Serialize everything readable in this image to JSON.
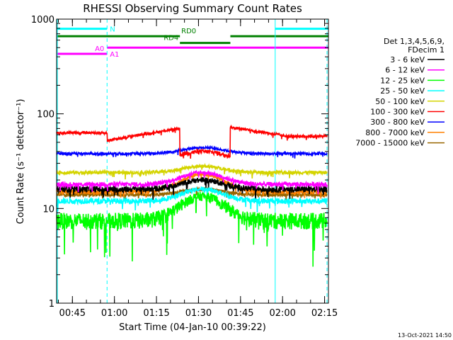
{
  "chart_data": {
    "type": "line",
    "title": "RHESSI Observing Summary Count Rates",
    "xlabel": "Start Time (04-Jan-10 00:39:22)",
    "ylabel": "Count Rate (s⁻¹ detector⁻¹)",
    "yscale": "log",
    "ylim": [
      1,
      1000
    ],
    "xlim_minutes_after_start": [
      0,
      97
    ],
    "x_tick_labels": [
      "00:45",
      "01:00",
      "01:15",
      "01:30",
      "01:45",
      "02:00",
      "02:15"
    ],
    "x_tick_minutes": [
      5.63,
      20.63,
      35.63,
      50.63,
      65.63,
      80.63,
      95.63
    ],
    "y_tick_labels": [
      "1",
      "10",
      "100",
      "1000"
    ],
    "y_tick_values": [
      1,
      10,
      100,
      1000
    ],
    "legend_header": [
      "Det 1,3,4,5,6,9,",
      "FDecim 1"
    ],
    "series": [
      {
        "name": "3 - 6 keV",
        "color": "#000000",
        "base": 16,
        "amp": 4,
        "noise": 1.2
      },
      {
        "name": "6 - 12 keV",
        "color": "#ff00ff",
        "base": 18,
        "amp": 6,
        "noise": 1.0
      },
      {
        "name": "12 - 25 keV",
        "color": "#00ff00",
        "base": 7.5,
        "amp": 6,
        "noise": 1.5
      },
      {
        "name": "25 - 50 keV",
        "color": "#00ffff",
        "base": 12,
        "amp": 4,
        "noise": 0.8
      },
      {
        "name": "50 - 100 keV",
        "color": "#d4d400",
        "base": 24,
        "amp": 4,
        "noise": 1.0
      },
      {
        "name": "100 - 300 keV",
        "color": "#ff0000",
        "base": 62,
        "amp": -22,
        "noise": 2.0
      },
      {
        "name": "300 - 800 keV",
        "color": "#0000ff",
        "base": 38,
        "amp": 6,
        "noise": 1.2
      },
      {
        "name": "800 - 7000 keV",
        "color": "#ff8000",
        "base": 15,
        "amp": 8,
        "noise": 0.8
      },
      {
        "name": "7000 - 15000 keV",
        "color": "#996600",
        "base": 14,
        "amp": 2,
        "noise": 0.6
      }
    ],
    "state_bars": [
      {
        "label": "N",
        "color": "#00ffff",
        "value": 790,
        "segments": [
          [
            0,
            18
          ],
          [
            78,
            97
          ]
        ]
      },
      {
        "label": "RD0",
        "color": "#008000",
        "value": 660,
        "segments": [
          [
            0,
            44
          ],
          [
            62,
            97
          ]
        ]
      },
      {
        "label": "RD4",
        "color": "#008000",
        "value": 560,
        "segments": [
          [
            44,
            62
          ]
        ]
      },
      {
        "label": "A0",
        "color": "#ff00ff",
        "value": 430,
        "segments": [
          [
            0,
            18
          ]
        ]
      },
      {
        "label": "A1",
        "color": "#ff00ff",
        "value": 500,
        "segments": [
          [
            18,
            97
          ]
        ]
      }
    ],
    "vertical_markers": [
      {
        "minute": 18,
        "color": "#00ffff",
        "style": "dashed"
      },
      {
        "minute": 78,
        "color": "#00ffff",
        "style": "solid"
      },
      {
        "minute": 96.5,
        "color": "#00ffff",
        "style": "dashed"
      }
    ]
  },
  "footer_timestamp": "13-Oct-2021 14:50"
}
